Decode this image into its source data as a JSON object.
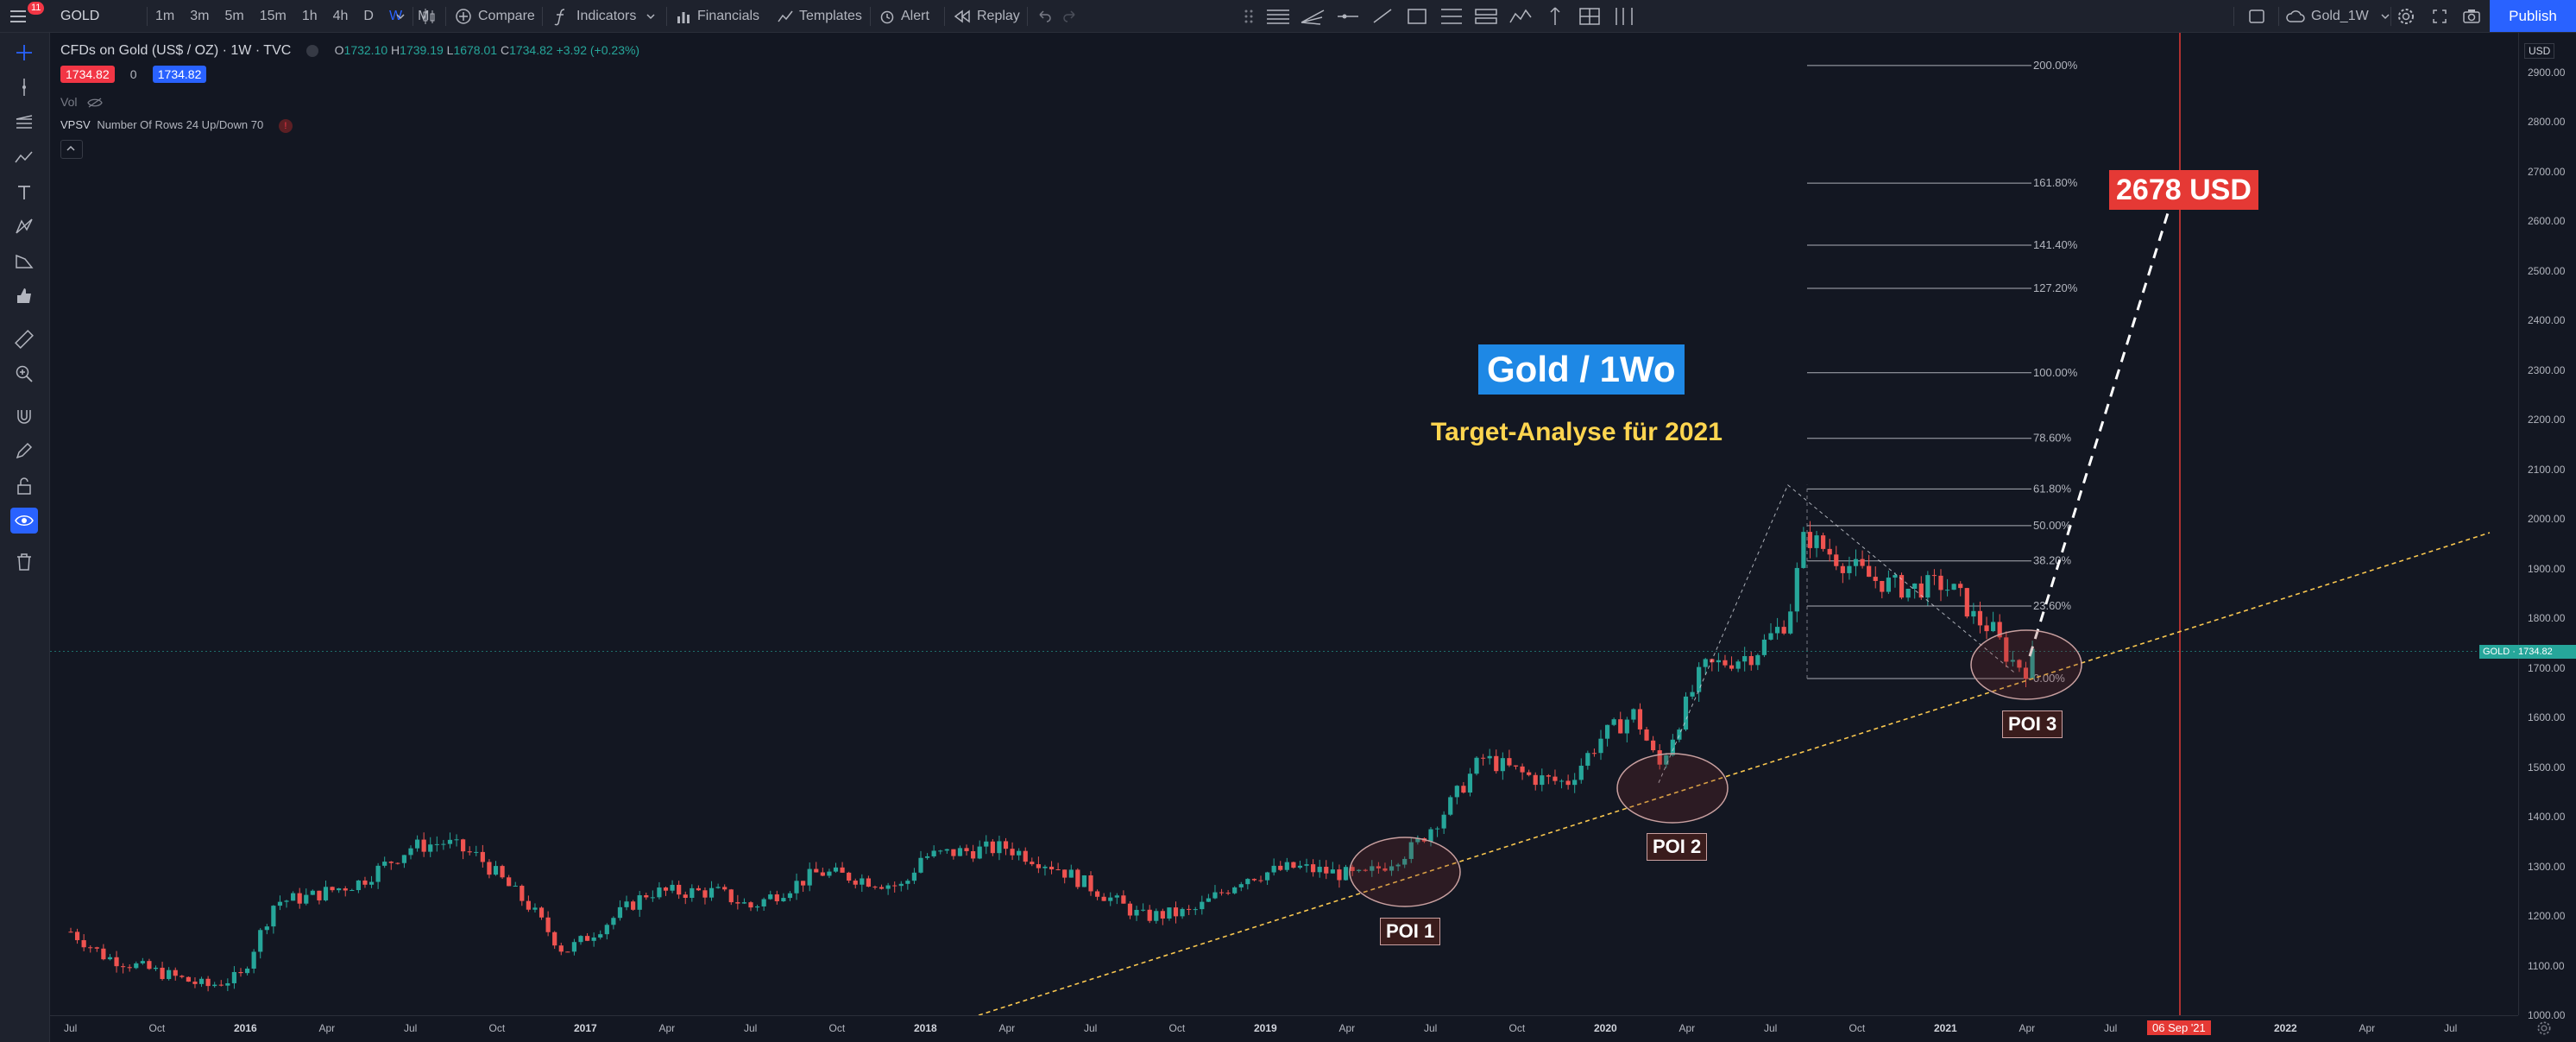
{
  "topbar": {
    "notif_count": "11",
    "symbol": "GOLD",
    "intervals": [
      "1m",
      "3m",
      "5m",
      "15m",
      "1h",
      "4h",
      "D",
      "W",
      "M"
    ],
    "compare_label": "Compare",
    "indicators_label": "Indicators",
    "financials_label": "Financials",
    "templates_label": "Templates",
    "alert_label": "Alert",
    "replay_label": "Replay",
    "layout_name": "Gold_1W",
    "publish_label": "Publish"
  },
  "legend": {
    "title": "CFDs on Gold (US$ / OZ) · 1W · TVC",
    "o_label": "O",
    "o_val": "1732.10",
    "h_label": "H",
    "h_val": "1739.19",
    "l_label": "L",
    "l_val": "1678.01",
    "c_label": "C",
    "c_val": "1734.82",
    "change": "+3.92 (+0.23%)",
    "bid": "1734.82",
    "spread": "0",
    "ask": "1734.82",
    "vol_label": "Vol",
    "vpsv_label": "VPSV",
    "vpsv_params": "Number Of Rows 24 Up/Down 70"
  },
  "annotations": {
    "headline": "Gold / 1Wo",
    "subtitle": "Target-Analyse für 2021",
    "target": "2678 USD",
    "poi1": "POI 1",
    "poi2": "POI 2",
    "poi3": "POI 3"
  },
  "fib_levels": [
    {
      "label": "200.00%",
      "price": 2915
    },
    {
      "label": "161.80%",
      "price": 2678
    },
    {
      "label": "141.40%",
      "price": 2553
    },
    {
      "label": "127.20%",
      "price": 2466
    },
    {
      "label": "100.00%",
      "price": 2296
    },
    {
      "label": "78.60%",
      "price": 2164
    },
    {
      "label": "61.80%",
      "price": 2062
    },
    {
      "label": "50.00%",
      "price": 1988
    },
    {
      "label": "38.20%",
      "price": 1917
    },
    {
      "label": "23.60%",
      "price": 1826
    },
    {
      "label": "0.00%",
      "price": 1680
    }
  ],
  "price_axis": {
    "currency": "USD",
    "ticks": [
      "2900.00",
      "2800.00",
      "2700.00",
      "2600.00",
      "2500.00",
      "2400.00",
      "2300.00",
      "2200.00",
      "2100.00",
      "2000.00",
      "1900.00",
      "1800.00",
      "1700.00",
      "1600.00",
      "1500.00",
      "1400.00",
      "1300.00",
      "1200.00",
      "1100.00",
      "1000.00"
    ],
    "current_label": "GOLD",
    "current_price": "1734.82"
  },
  "time_axis": {
    "labels": [
      "Jul",
      "Oct",
      "2016",
      "Apr",
      "Jul",
      "Oct",
      "2017",
      "Apr",
      "Jul",
      "Oct",
      "2018",
      "Apr",
      "Jul",
      "Oct",
      "2019",
      "Apr",
      "Jul",
      "Oct",
      "2020",
      "Apr",
      "Jul",
      "Oct",
      "2021",
      "Apr",
      "Jul",
      "Apr",
      "Jul",
      "2022"
    ],
    "cursor_date": "06 Sep '21"
  },
  "colors": {
    "up": "#26a69a",
    "down": "#ef5350",
    "accent": "#2962ff",
    "target_bg": "#e53935",
    "headline_bg": "#1e88e5",
    "subtitle": "#ffd54f",
    "trendline": "#f9c74f"
  },
  "chart_data": {
    "type": "candlestick",
    "timeframe": "1W",
    "price_range": [
      1000,
      2960
    ],
    "series_path": [
      [
        2015.5,
        1170
      ],
      [
        2015.6,
        1120
      ],
      [
        2015.75,
        1090
      ],
      [
        2015.9,
        1060
      ],
      [
        2016.0,
        1080
      ],
      [
        2016.1,
        1230
      ],
      [
        2016.2,
        1240
      ],
      [
        2016.35,
        1270
      ],
      [
        2016.5,
        1340
      ],
      [
        2016.6,
        1350
      ],
      [
        2016.7,
        1320
      ],
      [
        2016.85,
        1220
      ],
      [
        2016.95,
        1130
      ],
      [
        2017.0,
        1150
      ],
      [
        2017.2,
        1250
      ],
      [
        2017.4,
        1250
      ],
      [
        2017.5,
        1220
      ],
      [
        2017.7,
        1290
      ],
      [
        2017.8,
        1280
      ],
      [
        2017.95,
        1260
      ],
      [
        2018.0,
        1320
      ],
      [
        2018.1,
        1330
      ],
      [
        2018.25,
        1340
      ],
      [
        2018.4,
        1300
      ],
      [
        2018.55,
        1240
      ],
      [
        2018.65,
        1200
      ],
      [
        2018.8,
        1210
      ],
      [
        2018.95,
        1280
      ],
      [
        2019.1,
        1300
      ],
      [
        2019.3,
        1280
      ],
      [
        2019.45,
        1340
      ],
      [
        2019.55,
        1420
      ],
      [
        2019.65,
        1520
      ],
      [
        2019.8,
        1480
      ],
      [
        2019.9,
        1470
      ],
      [
        2020.0,
        1560
      ],
      [
        2020.1,
        1610
      ],
      [
        2020.17,
        1500
      ],
      [
        2020.22,
        1580
      ],
      [
        2020.3,
        1700
      ],
      [
        2020.45,
        1730
      ],
      [
        2020.55,
        1800
      ],
      [
        2020.6,
        1970
      ],
      [
        2020.7,
        1920
      ],
      [
        2020.8,
        1880
      ],
      [
        2020.9,
        1860
      ],
      [
        2021.0,
        1870
      ],
      [
        2021.05,
        1850
      ],
      [
        2021.1,
        1800
      ],
      [
        2021.15,
        1780
      ],
      [
        2021.2,
        1720
      ],
      [
        2021.25,
        1700
      ],
      [
        2021.28,
        1735
      ]
    ]
  }
}
